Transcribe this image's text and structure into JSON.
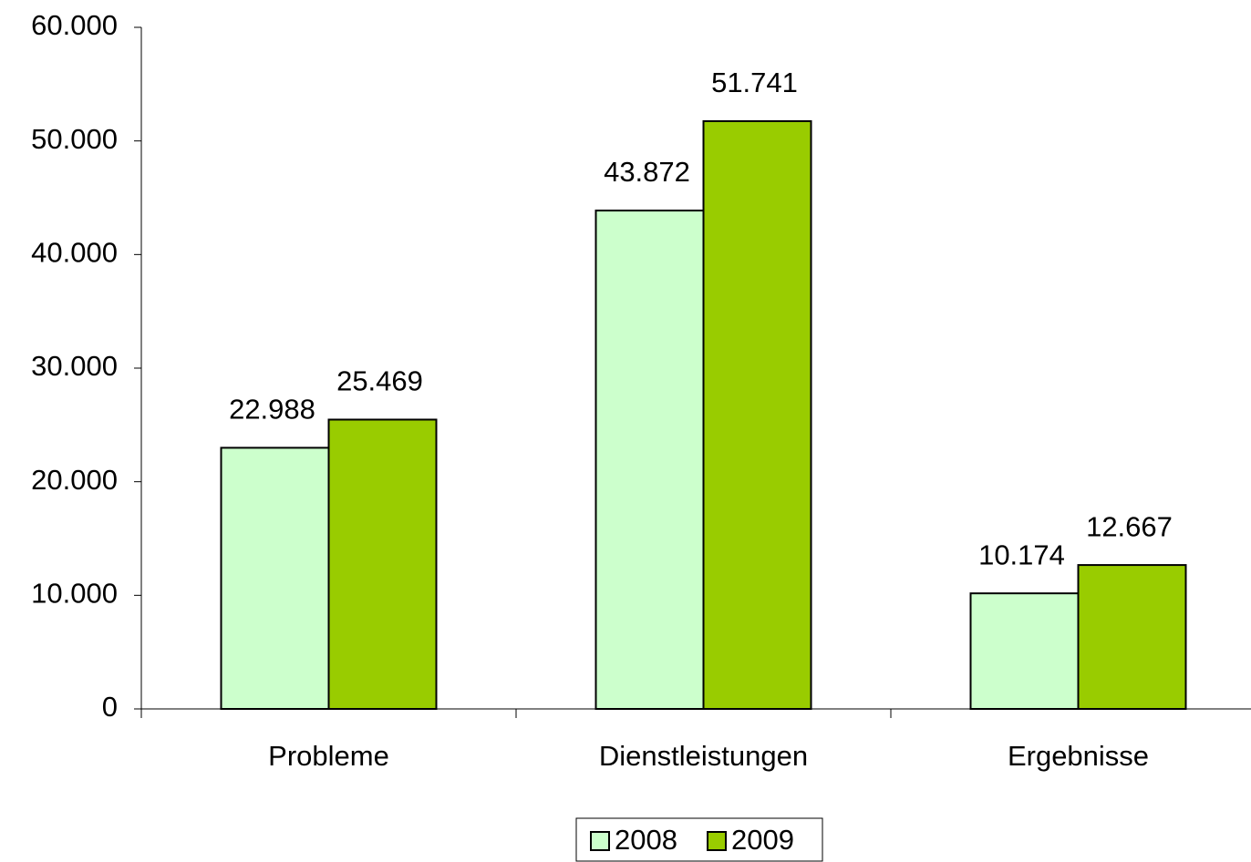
{
  "chart_data": {
    "type": "bar",
    "categories": [
      "Probleme",
      "Dienstleistungen",
      "Ergebnisse"
    ],
    "series": [
      {
        "name": "2008",
        "color": "#ccffcc",
        "values": [
          22988,
          43872,
          10174
        ],
        "value_labels": [
          "22.988",
          "43.872",
          "10.174"
        ]
      },
      {
        "name": "2009",
        "color": "#99cc00",
        "values": [
          25469,
          51741,
          12667
        ],
        "value_labels": [
          "25.469",
          "51.741",
          "12.667"
        ]
      }
    ],
    "ylim": [
      0,
      60000
    ],
    "yticks": [
      0,
      {
        "value": 10000,
        "label": "10.000"
      },
      {
        "value": 20000,
        "label": "20.000"
      },
      {
        "value": 30000,
        "label": "30.000"
      },
      {
        "value": 40000,
        "label": "40.000"
      },
      {
        "value": 50000,
        "label": "50.000"
      },
      {
        "value": 60000,
        "label": "60.000"
      }
    ],
    "legend": "bottom"
  }
}
